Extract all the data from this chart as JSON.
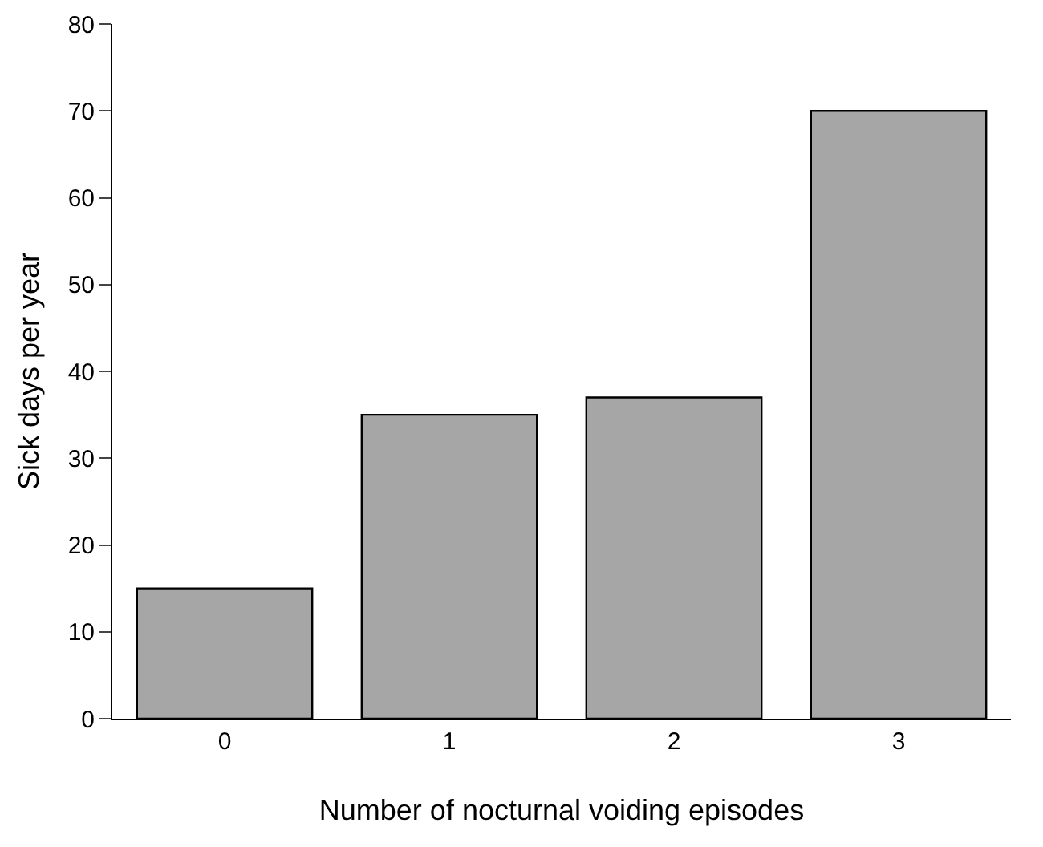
{
  "chart_data": {
    "type": "bar",
    "xlabel": "Number of nocturnal voiding episodes",
    "ylabel": "Sick days per year",
    "categories": [
      "0",
      "1",
      "2",
      "3"
    ],
    "values": [
      15,
      35,
      37,
      70
    ],
    "color": "#a6a6a6",
    "ylim": [
      0,
      80
    ],
    "yticks": [
      0,
      10,
      20,
      30,
      40,
      50,
      60,
      70,
      80
    ],
    "grid": false
  }
}
